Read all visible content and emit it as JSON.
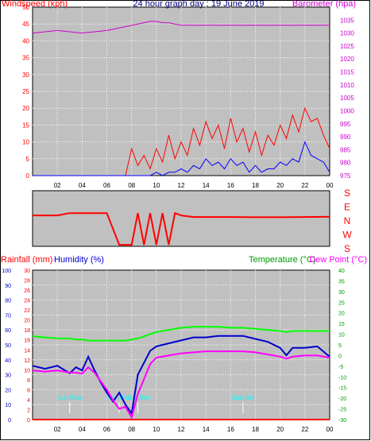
{
  "title": "24 hour graph day : 19 June 2019",
  "colors": {
    "wind": "#ff0000",
    "gust": "#0000ff",
    "baro": "#cc00cc",
    "rain": "#ff0000",
    "humidity": "#0000cc",
    "temp": "#00ff00",
    "dew": "#ff00ff",
    "plot_bg": "#c0c0c0",
    "sun": "#00ffff"
  },
  "chart_data": [
    {
      "type": "line",
      "title": "24 hour graph day : 19 June 2019",
      "ylabel_left": "Windspeed (kph)",
      "ylabel_right": "Barometer (hpa)",
      "x_ticks": [
        "02",
        "04",
        "06",
        "08",
        "10",
        "12",
        "14",
        "16",
        "18",
        "20",
        "22",
        "00"
      ],
      "y_left_ticks": [
        0,
        5,
        10,
        15,
        20,
        25,
        30,
        35,
        40,
        45,
        50
      ],
      "y_right_ticks": [
        975,
        980,
        985,
        990,
        995,
        1000,
        1005,
        1010,
        1015,
        1020,
        1025,
        1030,
        1035
      ],
      "ylim_left": [
        0,
        50
      ],
      "ylim_right": [
        975,
        1040
      ],
      "x": [
        0,
        1,
        2,
        3,
        4,
        5,
        6,
        7,
        7.5,
        8,
        8.5,
        9,
        9.5,
        10,
        10.5,
        11,
        11.5,
        12,
        12.5,
        13,
        13.5,
        14,
        14.5,
        15,
        15.5,
        16,
        16.5,
        17,
        17.5,
        18,
        18.5,
        19,
        19.5,
        20,
        20.5,
        21,
        21.5,
        22,
        22.5,
        23,
        23.5,
        24
      ],
      "series": [
        {
          "name": "Windspeed",
          "axis": "left",
          "values": [
            0,
            0,
            0,
            0,
            0,
            0,
            0,
            0,
            0,
            8,
            3,
            6,
            2,
            8,
            4,
            12,
            5,
            10,
            6,
            14,
            9,
            16,
            11,
            15,
            8,
            17,
            10,
            14,
            7,
            13,
            6,
            12,
            9,
            15,
            11,
            18,
            13,
            20,
            16,
            17,
            12,
            8
          ]
        },
        {
          "name": "Gust",
          "axis": "left",
          "values": [
            0,
            0,
            0,
            0,
            0,
            0,
            0,
            0,
            0,
            0,
            0,
            0,
            0,
            1,
            0,
            1,
            1,
            2,
            1,
            3,
            2,
            5,
            3,
            4,
            2,
            5,
            3,
            4,
            1,
            3,
            1,
            2,
            2,
            4,
            3,
            5,
            4,
            10,
            6,
            5,
            4,
            1
          ]
        },
        {
          "name": "Barometer",
          "axis": "right",
          "values": [
            1030,
            1030.5,
            1031,
            1030.5,
            1030,
            1030.5,
            1031,
            1032,
            1032.5,
            1033,
            1033.5,
            1034,
            1034.5,
            1034.5,
            1034,
            1034,
            1033.5,
            1033,
            1033,
            1033,
            1033,
            1033,
            1033,
            1033,
            1033,
            1033,
            1033,
            1033,
            1033,
            1033,
            1033,
            1033,
            1033,
            1033,
            1033,
            1033,
            1033,
            1033,
            1033,
            1033,
            1033,
            1033
          ]
        }
      ]
    },
    {
      "type": "line",
      "ylabel_right": [
        "S",
        "E",
        "N",
        "W",
        "S"
      ],
      "x": [
        0,
        1,
        2,
        3,
        4,
        5,
        6,
        7,
        7.5,
        8,
        8.5,
        9,
        9.5,
        10,
        10.5,
        11,
        11.5,
        12,
        12.5,
        13,
        14,
        16,
        18,
        20,
        22,
        24
      ],
      "series": [
        {
          "name": "Wind direction",
          "values": [
            200,
            200,
            200,
            215,
            215,
            215,
            215,
            10,
            10,
            10,
            215,
            10,
            215,
            10,
            215,
            10,
            215,
            200,
            195,
            190,
            190,
            190,
            188,
            188,
            190,
            192
          ]
        }
      ]
    },
    {
      "type": "line",
      "ylabel_left_outer": "Rainfall (mm)",
      "ylabel_left_inner": "Humidity (%)",
      "ylabel_right_outer": "Temperature (°C)",
      "ylabel_right_inner": "Dew Point (°C)",
      "x_ticks": [
        "02",
        "04",
        "06",
        "08",
        "10",
        "12",
        "14",
        "16",
        "18",
        "20",
        "22",
        "00"
      ],
      "y_humidity_ticks": [
        0,
        10,
        20,
        30,
        40,
        50,
        60,
        70,
        80,
        90,
        100
      ],
      "y_rain_ticks": [
        0,
        2,
        4,
        6,
        8,
        10,
        12,
        14,
        16,
        18,
        20,
        22,
        24,
        26,
        28,
        30
      ],
      "y_temp_ticks": [
        -30,
        -25,
        -20,
        -15,
        -10,
        -5,
        0,
        5,
        10,
        15,
        20,
        25,
        30,
        35,
        40
      ],
      "ylim_humidity": [
        0,
        100
      ],
      "ylim_temp": [
        -30,
        40
      ],
      "annotations": [
        {
          "label": "Sun Rise",
          "hour": 3.0
        },
        {
          "label": "Sun Rise",
          "hour": 7.0
        },
        {
          "label": "Sun Set",
          "hour": 8.5
        },
        {
          "label": "Sun Set",
          "hour": 17.0
        }
      ],
      "x": [
        0,
        1,
        2,
        3,
        3.5,
        4,
        4.5,
        5,
        5.5,
        6,
        6.5,
        7,
        7.5,
        8,
        8.5,
        9,
        9.5,
        10,
        11,
        12,
        13,
        14,
        15,
        16,
        17,
        18,
        19,
        20,
        20.5,
        21,
        22,
        23,
        24
      ],
      "series": [
        {
          "name": "Humidity",
          "axis": "humidity",
          "values": [
            36,
            34,
            36,
            31,
            35,
            33,
            42,
            33,
            25,
            18,
            12,
            18,
            10,
            4,
            30,
            38,
            46,
            49,
            51,
            53,
            55,
            55,
            56,
            56,
            56,
            54,
            52,
            48,
            43,
            48,
            48,
            49,
            42
          ]
        },
        {
          "name": "Temperature",
          "axis": "temp",
          "values": [
            9,
            8.5,
            8,
            8,
            7.5,
            7.5,
            7,
            7,
            7,
            7,
            7,
            7,
            7,
            7.5,
            8,
            9,
            10,
            11,
            12,
            13,
            13.5,
            13.5,
            13.5,
            13,
            13,
            12.5,
            12,
            11.5,
            11,
            11.5,
            11.5,
            11.5,
            11.5
          ]
        },
        {
          "name": "Dew Point",
          "axis": "temp",
          "values": [
            -7,
            -7.5,
            -7,
            -8,
            -8,
            -8.5,
            -5.5,
            -8,
            -12,
            -16,
            -21,
            -25,
            -24,
            -29,
            -18,
            -11,
            -4,
            -1,
            0,
            1,
            1.5,
            2,
            2,
            2,
            2,
            1.5,
            0.5,
            -0.5,
            -1.5,
            -0.5,
            0,
            0,
            -1
          ]
        },
        {
          "name": "Rainfall",
          "axis": "humidity",
          "values": [
            0,
            0,
            0,
            0,
            0,
            0,
            0,
            0,
            0,
            0,
            0,
            0,
            0,
            0,
            0,
            0,
            0,
            0,
            0,
            0,
            0,
            0,
            0,
            0,
            0,
            0,
            0,
            0,
            0,
            0,
            0,
            0,
            0
          ]
        }
      ]
    }
  ]
}
